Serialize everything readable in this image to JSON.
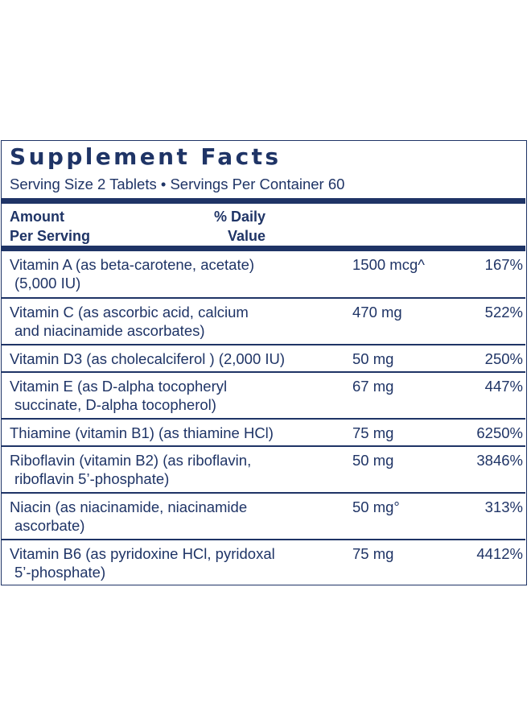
{
  "title": "Supplement Facts",
  "serving_line": "Serving Size 2 Tablets • Servings Per Container 60",
  "header": {
    "amount_line1": "Amount",
    "amount_line2": "Per Serving",
    "dv_line1": "% Daily",
    "dv_line2": "Value"
  },
  "rows": [
    {
      "name_line1": "Vitamin A (as beta-carotene, acetate)",
      "name_line2": "(5,000 IU)",
      "amount": "1500 mcg^",
      "dv": "167%"
    },
    {
      "name_line1": "Vitamin C (as ascorbic acid, calcium",
      "name_line2": "and niacinamide ascorbates)",
      "amount": "470 mg",
      "dv": "522%"
    },
    {
      "name_line1": "Vitamin D3 (as cholecalciferol ) (2,000 IU)",
      "name_line2": "",
      "amount": "50 mg",
      "dv": "250%"
    },
    {
      "name_line1": "Vitamin E (as D-alpha tocopheryl",
      "name_line2": "succinate, D-alpha tocopherol)",
      "amount": "67 mg",
      "dv": "447%"
    },
    {
      "name_line1": "Thiamine (vitamin B1) (as thiamine HCl)",
      "name_line2": "",
      "amount": "75 mg",
      "dv": "6250%"
    },
    {
      "name_line1": "Riboflavin (vitamin B2) (as riboflavin,",
      "name_line2": "riboflavin 5’-phosphate)",
      "amount": "50 mg",
      "dv": "3846%"
    },
    {
      "name_line1": "Niacin (as niacinamide, niacinamide",
      "name_line2": "ascorbate)",
      "amount": "50 mg°",
      "dv": "313%"
    },
    {
      "name_line1": "Vitamin B6 (as pyridoxine HCl, pyridoxal",
      "name_line2": "5’-phosphate)",
      "amount": "75 mg",
      "dv": "4412%"
    }
  ]
}
